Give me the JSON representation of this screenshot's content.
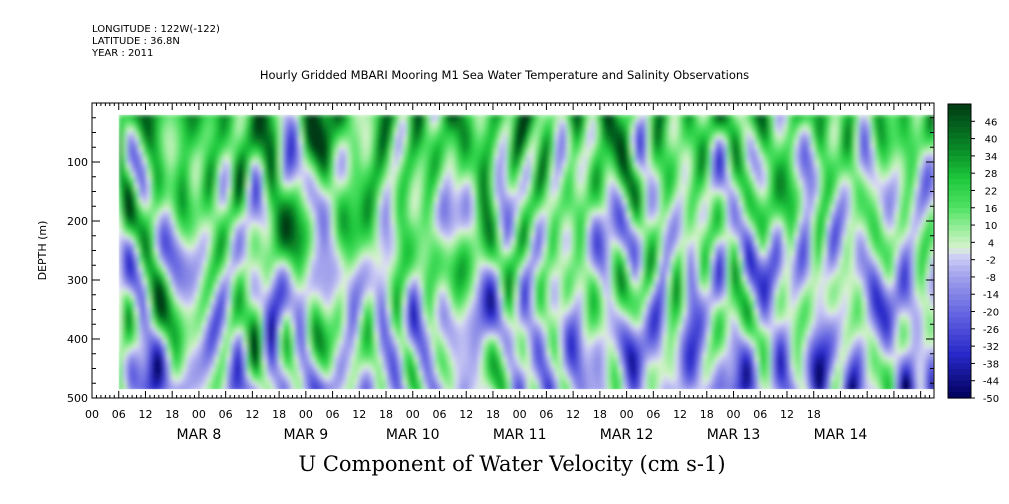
{
  "header": {
    "longitude": "LONGITUDE : 122W(-122)",
    "latitude": "LATITUDE : 36.8N",
    "year": "YEAR : 2011",
    "title": "Hourly Gridded MBARI Mooring M1 Sea Water Temperature and Salinity Observations",
    "variable_title": "U Component of Water Velocity (cm s-1)"
  },
  "chart_data": {
    "type": "heatmap",
    "title": "Hourly Gridded MBARI Mooring M1 Sea Water Temperature and Salinity Observations",
    "variable": "U Component of Water Velocity (cm s-1)",
    "xlabel": "",
    "ylabel": "DEPTH (m)",
    "y_reversed": true,
    "ylim": [
      500,
      0
    ],
    "y_ticks": [
      100,
      200,
      300,
      400,
      500
    ],
    "x_start": "2011-03-07 00:00",
    "x_end": "2011-03-14 21:00",
    "x_hour_ticks": [
      "00",
      "06",
      "12",
      "18",
      "00",
      "06",
      "12",
      "18",
      "00",
      "06",
      "12",
      "18",
      "00",
      "06",
      "12",
      "18",
      "00",
      "06",
      "12",
      "18",
      "00",
      "06",
      "12",
      "18",
      "00",
      "06",
      "12",
      "18"
    ],
    "x_day_labels": [
      "MAR 8",
      "MAR 9",
      "MAR 10",
      "MAR 11",
      "MAR 12",
      "MAR 13",
      "MAR 14"
    ],
    "colorbar_labels": [
      "46",
      "40",
      "34",
      "28",
      "22",
      "16",
      "10",
      "4",
      "-2",
      "-8",
      "-14",
      "-20",
      "-26",
      "-32",
      "-38",
      "-44",
      "-50"
    ],
    "colorbar_range": [
      -50,
      52
    ],
    "data_coverage": {
      "depth_range": [
        20,
        485
      ],
      "time_start": "2011-03-07 06:00"
    },
    "colors": {
      "strong_positive": "#003a14",
      "positive": "#1ed94a",
      "near_zero_pos": "#c8f2c4",
      "near_zero_neg": "#cfcff5",
      "negative": "#8c8ce6",
      "strong_negative": "#00005a"
    }
  }
}
